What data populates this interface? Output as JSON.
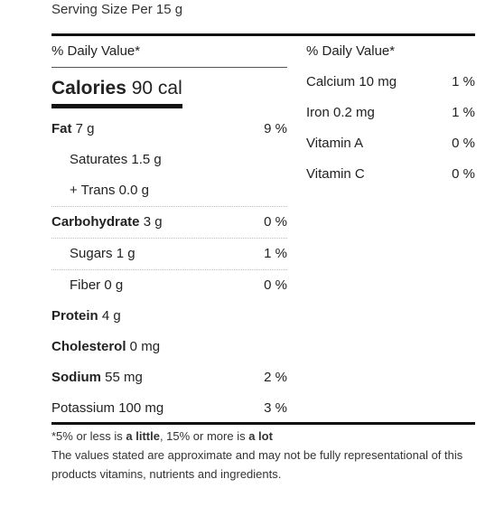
{
  "serving": "Serving Size Per 15 g",
  "daily_value_header": "% Daily Value*",
  "calories": {
    "label": "Calories",
    "value": "90 cal"
  },
  "left_rows": [
    {
      "name_bold": "Fat",
      "name": " 7 g",
      "pct": "9 %",
      "indent": false,
      "dotted": false
    },
    {
      "name_bold": "",
      "name": "Saturates 1.5 g",
      "pct": "",
      "indent": true,
      "dotted": false
    },
    {
      "name_bold": "",
      "name": "+ Trans 0.0 g",
      "pct": "",
      "indent": true,
      "dotted": false
    },
    {
      "name_bold": "Carbohydrate",
      "name": " 3 g",
      "pct": "0 %",
      "indent": false,
      "dotted": true
    },
    {
      "name_bold": "",
      "name": "Sugars 1 g",
      "pct": "1 %",
      "indent": true,
      "dotted": true
    },
    {
      "name_bold": "",
      "name": "Fiber 0 g",
      "pct": "0 %",
      "indent": true,
      "dotted": true
    },
    {
      "name_bold": "Protein",
      "name": " 4 g",
      "pct": "",
      "indent": false,
      "dotted": false
    },
    {
      "name_bold": "Cholesterol",
      "name": " 0 mg",
      "pct": "",
      "indent": false,
      "dotted": false
    },
    {
      "name_bold": "Sodium",
      "name": " 55 mg",
      "pct": "2 %",
      "indent": false,
      "dotted": false
    },
    {
      "name_bold": "",
      "name": "Potassium 100 mg",
      "pct": "3 %",
      "indent": false,
      "dotted": false
    }
  ],
  "right_rows": [
    {
      "name": "Calcium 10 mg",
      "pct": "1 %"
    },
    {
      "name": "Iron 0.2 mg",
      "pct": "1 %"
    },
    {
      "name": "Vitamin A",
      "pct": "0 %"
    },
    {
      "name": "Vitamin C",
      "pct": "0 %"
    }
  ],
  "footnote": {
    "line1_a": "*5% or less is ",
    "line1_b": "a little",
    "line1_c": ", 15% or more is ",
    "line1_d": "a lot",
    "line2": "The values stated are approximate and may not be fully representational of this products vitamins, nutrients and ingredients."
  }
}
